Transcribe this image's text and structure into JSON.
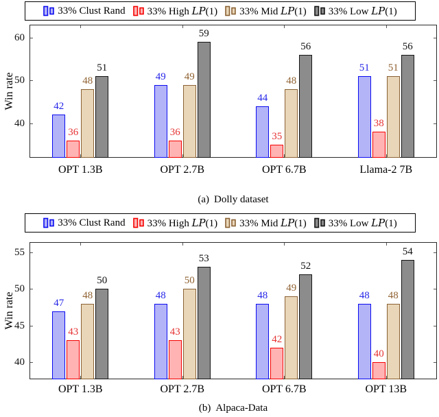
{
  "page": {
    "background": "#ffffff",
    "ylabel": "Win rate"
  },
  "legend": {
    "items": [
      {
        "pre": "33% Clust Rand",
        "cal": "",
        "post": "",
        "icon": "double-bar-swatch-icon"
      },
      {
        "pre": "33% High ",
        "cal": "LP",
        "post": "(1)",
        "icon": "double-bar-swatch-icon"
      },
      {
        "pre": "33% Mid ",
        "cal": "LP",
        "post": "(1)",
        "icon": "double-bar-swatch-icon"
      },
      {
        "pre": "33% Low ",
        "cal": "LP",
        "post": "(1)",
        "icon": "double-bar-swatch-icon"
      }
    ]
  },
  "series_styles": [
    {
      "name": "33% Clust Rand",
      "fill": "#b3b3f8",
      "stroke": "#0b0bf0",
      "label_color": "#2525e8"
    },
    {
      "name": "33% High LP(1)",
      "fill": "#ffb3b3",
      "stroke": "#f50000",
      "label_color": "#e63232"
    },
    {
      "name": "33% Mid LP(1)",
      "fill": "#e9d6b8",
      "stroke": "#8a6134",
      "label_color": "#8f6130"
    },
    {
      "name": "33% Low LP(1)",
      "fill": "#8c8c8c",
      "stroke": "#141414",
      "label_color": "#111111"
    }
  ],
  "chart_data": [
    {
      "type": "bar",
      "caption_label": "(a)",
      "caption_text": "Dolly dataset",
      "ylabel": "Win rate",
      "xlabel": "",
      "categories": [
        "OPT 1.3B",
        "OPT 2.7B",
        "OPT 6.7B",
        "Llama-2 7B"
      ],
      "series": [
        {
          "name": "33% Clust Rand",
          "values": [
            42,
            49,
            44,
            51
          ]
        },
        {
          "name": "33% High LP(1)",
          "values": [
            36,
            36,
            35,
            38
          ]
        },
        {
          "name": "33% Mid LP(1)",
          "values": [
            48,
            49,
            48,
            51
          ]
        },
        {
          "name": "33% Low LP(1)",
          "values": [
            51,
            59,
            56,
            56
          ]
        }
      ],
      "yticks": [
        40,
        50,
        60
      ],
      "ylim": [
        32,
        63
      ],
      "bar_value_labels": true,
      "grid": false,
      "legend_position": "top-outside-boxed"
    },
    {
      "type": "bar",
      "caption_label": "(b)",
      "caption_text": "Alpaca-Data",
      "ylabel": "Win rate",
      "xlabel": "",
      "categories": [
        "OPT 1.3B",
        "OPT 2.7B",
        "OPT 6.7B",
        "OPT 13B"
      ],
      "series": [
        {
          "name": "33% Clust Rand",
          "values": [
            47,
            48,
            48,
            48
          ]
        },
        {
          "name": "33% High LP(1)",
          "values": [
            43,
            43,
            42,
            40
          ]
        },
        {
          "name": "33% Mid LP(1)",
          "values": [
            48,
            50,
            49,
            48
          ]
        },
        {
          "name": "33% Low LP(1)",
          "values": [
            50,
            53,
            52,
            54
          ]
        }
      ],
      "yticks": [
        40,
        45,
        50,
        55
      ],
      "ylim": [
        37.7,
        56.4
      ],
      "bar_value_labels": true,
      "grid": false,
      "legend_position": "top-outside-boxed"
    }
  ]
}
